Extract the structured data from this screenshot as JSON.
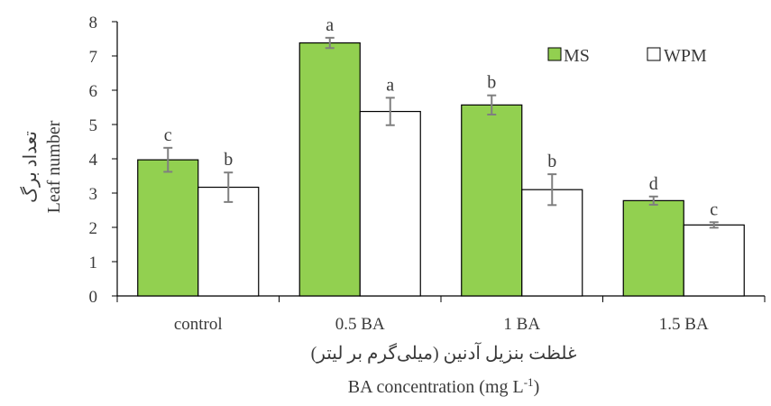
{
  "chart_data": {
    "type": "bar",
    "categories": [
      "control",
      "0.5 BA",
      "1 BA",
      "1.5 BA"
    ],
    "series": [
      {
        "name": "MS",
        "color": "#92d050",
        "values": [
          3.97,
          7.38,
          5.57,
          2.78
        ],
        "errors": [
          0.35,
          0.15,
          0.28,
          0.12
        ],
        "significance": [
          "c",
          "a",
          "b",
          "d"
        ]
      },
      {
        "name": "WPM",
        "color": "#ffffff",
        "values": [
          3.17,
          5.38,
          3.1,
          2.07
        ],
        "errors": [
          0.43,
          0.4,
          0.45,
          0.08
        ],
        "significance": [
          "b",
          "a",
          "b",
          "c"
        ]
      }
    ],
    "ylim": [
      0,
      8
    ],
    "yticks": [
      "0",
      "1",
      "2",
      "3",
      "4",
      "5",
      "6",
      "7",
      "8"
    ],
    "ylabel_lines": [
      "تعداد برگ",
      "Leaf number"
    ],
    "xlabel_fa": "غلظت بنزیل آدنین (میلی‌گرم بر لیتر)",
    "xlabel_en": {
      "text": "BA concentration (mg  L",
      "superscript": "-1",
      "close": ")"
    },
    "legend_position": "top-right",
    "grid": false
  }
}
